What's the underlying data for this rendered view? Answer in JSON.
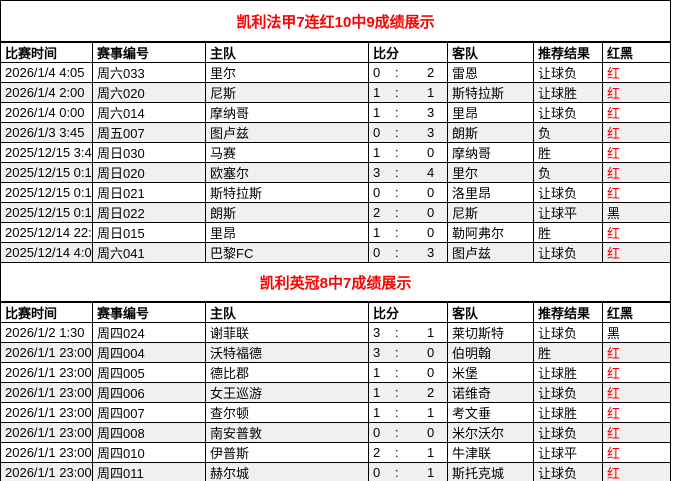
{
  "colors": {
    "title_red": "#ff0000",
    "result_red": "#ff0000",
    "result_black": "#000000",
    "border": "#000000",
    "row_stripe": "#f0f0f0",
    "red_value": "红",
    "black_value": "黑"
  },
  "tables": [
    {
      "title": "凯利法甲7连红10中9成绩展示",
      "headers": {
        "time": "比赛时间",
        "match_no": "赛事编号",
        "home": "主队",
        "score": "比分",
        "away": "客队",
        "recommend": "推荐结果",
        "result": "红黑"
      },
      "rows": [
        {
          "time": "2026/1/4 4:05",
          "match_no": "周六033",
          "home": "里尔",
          "score_home": "0",
          "score_away": "2",
          "away": "雷恩",
          "recommend": "让球负",
          "result": "红"
        },
        {
          "time": "2026/1/4 2:00",
          "match_no": "周六020",
          "home": "尼斯",
          "score_home": "1",
          "score_away": "1",
          "away": "斯特拉斯",
          "recommend": "让球胜",
          "result": "红"
        },
        {
          "time": "2026/1/4 0:00",
          "match_no": "周六014",
          "home": "摩纳哥",
          "score_home": "1",
          "score_away": "3",
          "away": "里昂",
          "recommend": "让球负",
          "result": "红"
        },
        {
          "time": "2026/1/3 3:45",
          "match_no": "周五007",
          "home": "图卢兹",
          "score_home": "0",
          "score_away": "3",
          "away": "朗斯",
          "recommend": "负",
          "result": "红"
        },
        {
          "time": "2025/12/15 3:45",
          "match_no": "周日030",
          "home": "马赛",
          "score_home": "1",
          "score_away": "0",
          "away": "摩纳哥",
          "recommend": "胜",
          "result": "红"
        },
        {
          "time": "2025/12/15 0:15",
          "match_no": "周日020",
          "home": "欧塞尔",
          "score_home": "3",
          "score_away": "4",
          "away": "里尔",
          "recommend": "负",
          "result": "红"
        },
        {
          "time": "2025/12/15 0:15",
          "match_no": "周日021",
          "home": "斯特拉斯",
          "score_home": "0",
          "score_away": "0",
          "away": "洛里昂",
          "recommend": "让球负",
          "result": "红"
        },
        {
          "time": "2025/12/15 0:15",
          "match_no": "周日022",
          "home": "朗斯",
          "score_home": "2",
          "score_away": "0",
          "away": "尼斯",
          "recommend": "让球平",
          "result": "黑"
        },
        {
          "time": "2025/12/14 22:00",
          "match_no": "周日015",
          "home": "里昂",
          "score_home": "1",
          "score_away": "0",
          "away": "勒阿弗尔",
          "recommend": "胜",
          "result": "红"
        },
        {
          "time": "2025/12/14 4:05",
          "match_no": "周六041",
          "home": "巴黎FC",
          "score_home": "0",
          "score_away": "3",
          "away": "图卢兹",
          "recommend": "让球负",
          "result": "红"
        }
      ]
    },
    {
      "title": "凯利英冠8中7成绩展示",
      "headers": {
        "time": "比赛时间",
        "match_no": "赛事编号",
        "home": "主队",
        "score": "比分",
        "away": "客队",
        "recommend": "推荐结果",
        "result": "红黑"
      },
      "rows": [
        {
          "time": "2026/1/2 1:30",
          "match_no": "周四024",
          "home": "谢菲联",
          "score_home": "3",
          "score_away": "1",
          "away": "莱切斯特",
          "recommend": "让球负",
          "result": "黑"
        },
        {
          "time": "2026/1/1 23:00",
          "match_no": "周四004",
          "home": "沃特福德",
          "score_home": "3",
          "score_away": "0",
          "away": "伯明翰",
          "recommend": "胜",
          "result": "红"
        },
        {
          "time": "2026/1/1 23:00",
          "match_no": "周四005",
          "home": "德比郡",
          "score_home": "1",
          "score_away": "0",
          "away": "米堡",
          "recommend": "让球胜",
          "result": "红"
        },
        {
          "time": "2026/1/1 23:00",
          "match_no": "周四006",
          "home": "女王巡游",
          "score_home": "1",
          "score_away": "2",
          "away": "诺维奇",
          "recommend": "让球负",
          "result": "红"
        },
        {
          "time": "2026/1/1 23:00",
          "match_no": "周四007",
          "home": "查尔顿",
          "score_home": "1",
          "score_away": "1",
          "away": "考文垂",
          "recommend": "让球胜",
          "result": "红"
        },
        {
          "time": "2026/1/1 23:00",
          "match_no": "周四008",
          "home": "南安普敦",
          "score_home": "0",
          "score_away": "0",
          "away": "米尔沃尔",
          "recommend": "让球负",
          "result": "红"
        },
        {
          "time": "2026/1/1 23:00",
          "match_no": "周四010",
          "home": "伊普斯",
          "score_home": "2",
          "score_away": "1",
          "away": "牛津联",
          "recommend": "让球平",
          "result": "红"
        },
        {
          "time": "2026/1/1 23:00",
          "match_no": "周四011",
          "home": "赫尔城",
          "score_home": "0",
          "score_away": "1",
          "away": "斯托克城",
          "recommend": "让球负",
          "result": "红"
        }
      ]
    }
  ]
}
